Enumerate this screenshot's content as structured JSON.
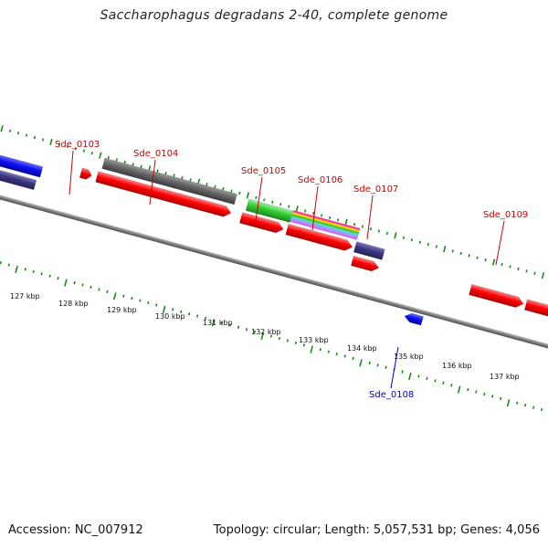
{
  "title": "Saccharophagus degradans 2-40, complete genome",
  "footer": {
    "accession": "Accession: NC_007912",
    "summary": "Topology: circular; Length: 5,057,531 bp; Genes: 4,056"
  },
  "colors": {
    "forward_gene": "#ff0000",
    "reverse_gene": "#0000ff",
    "dark_gene": "#3a3580",
    "grey_gene": "#666666",
    "green_gene": "#33cc33",
    "tick": "#1a8a1a",
    "backbone": "#808080",
    "label_forward": "#cc0000",
    "label_reverse": "#0000cc"
  },
  "ruler_labels": [
    "127 kbp",
    "128 kbp",
    "129 kbp",
    "130 kbp",
    "131 kbp",
    "132 kbp",
    "133 kbp",
    "134 kbp",
    "135 kbp",
    "136 kbp",
    "137 kbp"
  ],
  "gene_labels": [
    {
      "text": "Sde_0103",
      "color": "label_forward"
    },
    {
      "text": "Sde_0104",
      "color": "label_forward"
    },
    {
      "text": "Sde_0105",
      "color": "label_forward"
    },
    {
      "text": "Sde_0106",
      "color": "label_forward"
    },
    {
      "text": "Sde_0107",
      "color": "label_forward"
    },
    {
      "text": "Sde_0109",
      "color": "label_forward"
    },
    {
      "text": "Sde_0108",
      "color": "label_reverse"
    }
  ]
}
